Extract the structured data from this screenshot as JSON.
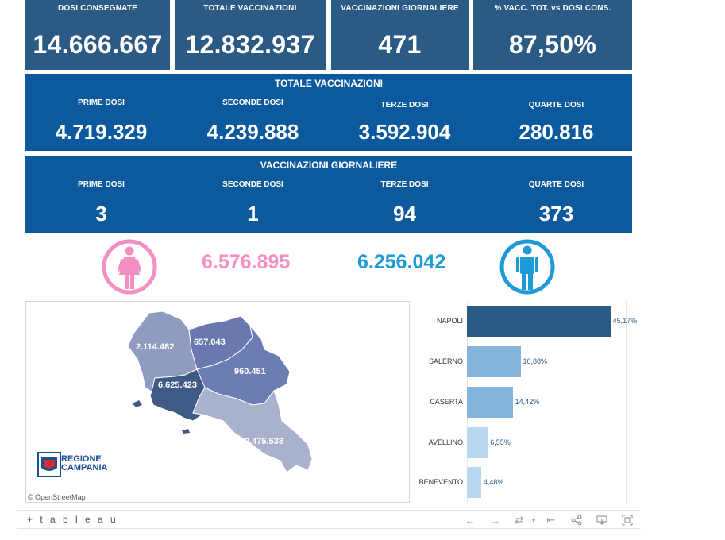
{
  "kpis": [
    {
      "label": "DOSI  CONSEGNATE",
      "value": "14.666.667"
    },
    {
      "label": "TOTALE VACCINAZIONI",
      "value": "12.832.937"
    },
    {
      "label": "VACCINAZIONI GIORNALIERE",
      "value": "471"
    },
    {
      "label": "% VACC. TOT. vs DOSI CONS.",
      "value": "87,50%"
    }
  ],
  "totale_vaccinazioni": {
    "title": "TOTALE VACCINAZIONI",
    "items": [
      {
        "label": "PRIME DOSI",
        "value": "4.719.329"
      },
      {
        "label": "SECONDE DOSI",
        "value": "4.239.888"
      },
      {
        "label": "TERZE DOSI",
        "value": "3.592.904"
      },
      {
        "label": "QUARTE DOSI",
        "value": "280.816"
      }
    ]
  },
  "vaccinazioni_giornaliere": {
    "title": "VACCINAZIONI GIORNALIERE",
    "items": [
      {
        "label": "PRIME DOSI",
        "value": "3"
      },
      {
        "label": "SECONDE DOSI",
        "value": "1"
      },
      {
        "label": "TERZE DOSI",
        "value": "94"
      },
      {
        "label": "QUARTE DOSI",
        "value": "373"
      }
    ]
  },
  "gender": {
    "female": {
      "value": "6.576.895",
      "color": "#f48fc4",
      "icon": "female-icon"
    },
    "male": {
      "value": "6.256.042",
      "color": "#1e9ad6",
      "icon": "male-icon"
    }
  },
  "map": {
    "provinces": [
      {
        "name": "Caserta",
        "value": "2.114.482",
        "color": "#8f9bbf"
      },
      {
        "name": "Benevento",
        "value": "657.043",
        "color": "#6b78b0"
      },
      {
        "name": "Avellino",
        "value": "960.451",
        "color": "#6c7db4"
      },
      {
        "name": "Napoli",
        "value": "6.625.423",
        "color": "#3f5a85"
      },
      {
        "name": "Salerno",
        "value": "2.475.538",
        "color": "#a9b1cc"
      }
    ],
    "logo_text": [
      "REGIONE",
      "CAMPANIA"
    ],
    "attribution": "© OpenStreetMap"
  },
  "chart_data": {
    "type": "bar",
    "orientation": "horizontal",
    "categories": [
      "NAPOLI",
      "SALERNO",
      "CASERTA",
      "AVELLINO",
      "BENEVENTO"
    ],
    "values": [
      45.17,
      16.88,
      14.42,
      6.55,
      4.48
    ],
    "labels": [
      "45,17%",
      "16,88%",
      "14,42%",
      "6,55%",
      "4,48%"
    ],
    "colors": [
      "#2b5a85",
      "#86b3d9",
      "#86b3d9",
      "#b7d8ef",
      "#b7d8ef"
    ],
    "xlim": [
      0,
      50
    ],
    "grid": true
  },
  "toolbar": {
    "logo": "+ t a b l e a u",
    "icons": [
      "undo-icon",
      "redo-icon",
      "revert-icon",
      "first-page-icon",
      "share-icon",
      "download-icon",
      "fullscreen-icon"
    ]
  }
}
